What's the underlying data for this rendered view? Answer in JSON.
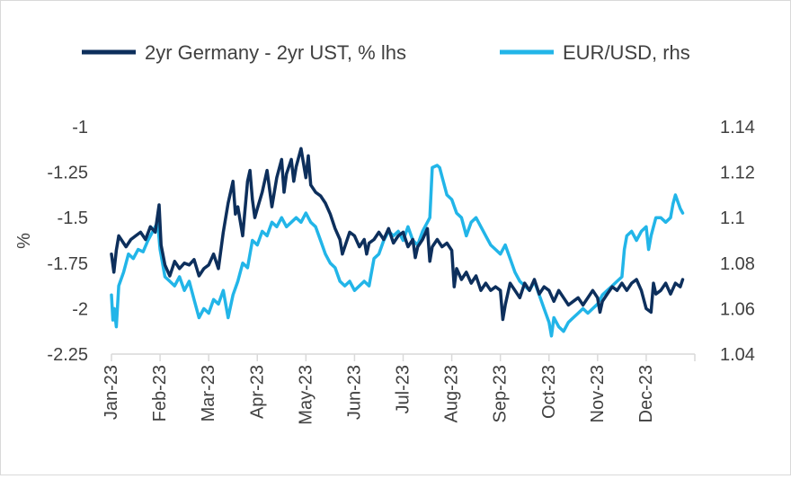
{
  "chart_data": {
    "type": "line",
    "title": "",
    "xlabel": "",
    "ylabel_left": "%",
    "ylabel_right": "",
    "x_categories": [
      "Jan-23",
      "Feb-23",
      "Mar-23",
      "Apr-23",
      "May-23",
      "Jun-23",
      "Jul-23",
      "Aug-23",
      "Sep-23",
      "Oct-23",
      "Nov-23",
      "Dec-23"
    ],
    "ylim_left": [
      -2.25,
      -1
    ],
    "yticks_left": [
      -1,
      -1.25,
      -1.5,
      -1.75,
      -2,
      -2.25
    ],
    "ytick_labels_left": [
      "-1",
      "-1.25",
      "-1.5",
      "-1.75",
      "-2",
      "-2.25"
    ],
    "ylim_right": [
      1.04,
      1.14
    ],
    "yticks_right": [
      1.14,
      1.12,
      1.1,
      1.08,
      1.06,
      1.04
    ],
    "ytick_labels_right": [
      "1.14",
      "1.12",
      "1.1",
      "1.08",
      "1.06",
      "1.04"
    ],
    "grid": false,
    "legend_position": "top",
    "colors": {
      "germany_ust": "#0d2f5c",
      "eurusd": "#22b5e8",
      "axis": "#d9d9d9",
      "text": "#404040"
    },
    "series": [
      {
        "name": "2yr Germany - 2yr UST, % lhs",
        "axis": "left",
        "points": [
          [
            0.0,
            -1.7
          ],
          [
            0.05,
            -1.8
          ],
          [
            0.1,
            -1.68
          ],
          [
            0.15,
            -1.6
          ],
          [
            0.2,
            -1.62
          ],
          [
            0.3,
            -1.66
          ],
          [
            0.4,
            -1.62
          ],
          [
            0.5,
            -1.6
          ],
          [
            0.6,
            -1.58
          ],
          [
            0.7,
            -1.62
          ],
          [
            0.8,
            -1.55
          ],
          [
            0.9,
            -1.58
          ],
          [
            0.98,
            -1.43
          ],
          [
            1.02,
            -1.65
          ],
          [
            1.1,
            -1.76
          ],
          [
            1.2,
            -1.82
          ],
          [
            1.3,
            -1.74
          ],
          [
            1.4,
            -1.78
          ],
          [
            1.5,
            -1.75
          ],
          [
            1.6,
            -1.76
          ],
          [
            1.7,
            -1.73
          ],
          [
            1.8,
            -1.82
          ],
          [
            1.9,
            -1.78
          ],
          [
            2.0,
            -1.76
          ],
          [
            2.1,
            -1.7
          ],
          [
            2.2,
            -1.78
          ],
          [
            2.3,
            -1.58
          ],
          [
            2.35,
            -1.5
          ],
          [
            2.4,
            -1.42
          ],
          [
            2.5,
            -1.3
          ],
          [
            2.55,
            -1.48
          ],
          [
            2.6,
            -1.44
          ],
          [
            2.7,
            -1.6
          ],
          [
            2.8,
            -1.3
          ],
          [
            2.85,
            -1.24
          ],
          [
            2.9,
            -1.4
          ],
          [
            2.95,
            -1.5
          ],
          [
            3.0,
            -1.45
          ],
          [
            3.1,
            -1.36
          ],
          [
            3.2,
            -1.24
          ],
          [
            3.3,
            -1.44
          ],
          [
            3.4,
            -1.28
          ],
          [
            3.5,
            -1.18
          ],
          [
            3.55,
            -1.36
          ],
          [
            3.6,
            -1.26
          ],
          [
            3.7,
            -1.18
          ],
          [
            3.75,
            -1.3
          ],
          [
            3.8,
            -1.22
          ],
          [
            3.9,
            -1.12
          ],
          [
            4.0,
            -1.28
          ],
          [
            4.05,
            -1.16
          ],
          [
            4.1,
            -1.32
          ],
          [
            4.2,
            -1.36
          ],
          [
            4.3,
            -1.38
          ],
          [
            4.4,
            -1.42
          ],
          [
            4.5,
            -1.48
          ],
          [
            4.6,
            -1.56
          ],
          [
            4.7,
            -1.62
          ],
          [
            4.75,
            -1.7
          ],
          [
            4.8,
            -1.66
          ],
          [
            4.9,
            -1.58
          ],
          [
            5.0,
            -1.6
          ],
          [
            5.1,
            -1.66
          ],
          [
            5.2,
            -1.62
          ],
          [
            5.25,
            -1.7
          ],
          [
            5.3,
            -1.64
          ],
          [
            5.4,
            -1.62
          ],
          [
            5.5,
            -1.58
          ],
          [
            5.6,
            -1.62
          ],
          [
            5.7,
            -1.56
          ],
          [
            5.8,
            -1.64
          ],
          [
            5.9,
            -1.6
          ],
          [
            6.0,
            -1.58
          ],
          [
            6.1,
            -1.66
          ],
          [
            6.2,
            -1.62
          ],
          [
            6.25,
            -1.72
          ],
          [
            6.3,
            -1.66
          ],
          [
            6.4,
            -1.62
          ],
          [
            6.5,
            -1.56
          ],
          [
            6.55,
            -1.74
          ],
          [
            6.6,
            -1.66
          ],
          [
            6.7,
            -1.62
          ],
          [
            6.8,
            -1.66
          ],
          [
            6.9,
            -1.64
          ],
          [
            7.0,
            -1.68
          ],
          [
            7.05,
            -1.88
          ],
          [
            7.1,
            -1.78
          ],
          [
            7.2,
            -1.84
          ],
          [
            7.3,
            -1.8
          ],
          [
            7.4,
            -1.86
          ],
          [
            7.5,
            -1.82
          ],
          [
            7.6,
            -1.9
          ],
          [
            7.7,
            -1.86
          ],
          [
            7.8,
            -1.9
          ],
          [
            7.9,
            -1.88
          ],
          [
            8.0,
            -1.9
          ],
          [
            8.05,
            -2.06
          ],
          [
            8.1,
            -1.98
          ],
          [
            8.2,
            -1.86
          ],
          [
            8.3,
            -1.9
          ],
          [
            8.4,
            -1.94
          ],
          [
            8.5,
            -1.86
          ],
          [
            8.6,
            -1.9
          ],
          [
            8.7,
            -1.84
          ],
          [
            8.8,
            -1.92
          ],
          [
            8.9,
            -1.88
          ],
          [
            9.0,
            -1.9
          ],
          [
            9.1,
            -1.96
          ],
          [
            9.2,
            -1.9
          ],
          [
            9.3,
            -1.94
          ],
          [
            9.4,
            -1.98
          ],
          [
            9.5,
            -1.96
          ],
          [
            9.6,
            -1.94
          ],
          [
            9.7,
            -1.98
          ],
          [
            9.8,
            -1.94
          ],
          [
            9.9,
            -1.9
          ],
          [
            10.0,
            -1.94
          ],
          [
            10.05,
            -2.02
          ],
          [
            10.1,
            -1.96
          ],
          [
            10.2,
            -1.92
          ],
          [
            10.3,
            -1.88
          ],
          [
            10.4,
            -1.9
          ],
          [
            10.5,
            -1.86
          ],
          [
            10.6,
            -1.9
          ],
          [
            10.7,
            -1.86
          ],
          [
            10.8,
            -1.84
          ],
          [
            10.9,
            -1.9
          ],
          [
            11.0,
            -2.0
          ],
          [
            11.1,
            -2.02
          ],
          [
            11.15,
            -1.86
          ],
          [
            11.2,
            -1.92
          ],
          [
            11.3,
            -1.9
          ],
          [
            11.4,
            -1.86
          ],
          [
            11.5,
            -1.92
          ],
          [
            11.6,
            -1.86
          ],
          [
            11.7,
            -1.88
          ],
          [
            11.75,
            -1.84
          ]
        ]
      },
      {
        "name": "EUR/USD, rhs",
        "axis": "right",
        "points": [
          [
            0.0,
            1.066
          ],
          [
            0.03,
            1.055
          ],
          [
            0.06,
            1.06
          ],
          [
            0.1,
            1.052
          ],
          [
            0.15,
            1.07
          ],
          [
            0.25,
            1.076
          ],
          [
            0.35,
            1.084
          ],
          [
            0.45,
            1.082
          ],
          [
            0.55,
            1.086
          ],
          [
            0.65,
            1.085
          ],
          [
            0.75,
            1.09
          ],
          [
            0.85,
            1.094
          ],
          [
            0.95,
            1.098
          ],
          [
            1.0,
            1.086
          ],
          [
            1.1,
            1.074
          ],
          [
            1.2,
            1.072
          ],
          [
            1.3,
            1.07
          ],
          [
            1.4,
            1.074
          ],
          [
            1.5,
            1.068
          ],
          [
            1.6,
            1.072
          ],
          [
            1.7,
            1.064
          ],
          [
            1.8,
            1.056
          ],
          [
            1.9,
            1.06
          ],
          [
            2.0,
            1.058
          ],
          [
            2.1,
            1.064
          ],
          [
            2.2,
            1.062
          ],
          [
            2.3,
            1.068
          ],
          [
            2.4,
            1.056
          ],
          [
            2.5,
            1.066
          ],
          [
            2.6,
            1.072
          ],
          [
            2.7,
            1.08
          ],
          [
            2.8,
            1.078
          ],
          [
            2.9,
            1.09
          ],
          [
            3.0,
            1.088
          ],
          [
            3.1,
            1.094
          ],
          [
            3.2,
            1.092
          ],
          [
            3.3,
            1.098
          ],
          [
            3.4,
            1.096
          ],
          [
            3.5,
            1.1
          ],
          [
            3.6,
            1.096
          ],
          [
            3.7,
            1.098
          ],
          [
            3.8,
            1.1
          ],
          [
            3.9,
            1.098
          ],
          [
            4.0,
            1.102
          ],
          [
            4.1,
            1.098
          ],
          [
            4.2,
            1.096
          ],
          [
            4.3,
            1.09
          ],
          [
            4.4,
            1.084
          ],
          [
            4.5,
            1.08
          ],
          [
            4.6,
            1.078
          ],
          [
            4.7,
            1.072
          ],
          [
            4.8,
            1.07
          ],
          [
            4.9,
            1.072
          ],
          [
            5.0,
            1.068
          ],
          [
            5.1,
            1.07
          ],
          [
            5.2,
            1.072
          ],
          [
            5.3,
            1.07
          ],
          [
            5.4,
            1.082
          ],
          [
            5.5,
            1.084
          ],
          [
            5.6,
            1.09
          ],
          [
            5.7,
            1.094
          ],
          [
            5.8,
            1.092
          ],
          [
            5.9,
            1.094
          ],
          [
            6.0,
            1.09
          ],
          [
            6.1,
            1.096
          ],
          [
            6.2,
            1.09
          ],
          [
            6.3,
            1.088
          ],
          [
            6.4,
            1.094
          ],
          [
            6.5,
            1.098
          ],
          [
            6.55,
            1.1
          ],
          [
            6.6,
            1.122
          ],
          [
            6.7,
            1.123
          ],
          [
            6.75,
            1.122
          ],
          [
            6.8,
            1.118
          ],
          [
            6.9,
            1.11
          ],
          [
            7.0,
            1.108
          ],
          [
            7.1,
            1.102
          ],
          [
            7.2,
            1.1
          ],
          [
            7.3,
            1.092
          ],
          [
            7.4,
            1.098
          ],
          [
            7.5,
            1.1
          ],
          [
            7.6,
            1.096
          ],
          [
            7.7,
            1.092
          ],
          [
            7.8,
            1.088
          ],
          [
            7.9,
            1.086
          ],
          [
            8.0,
            1.084
          ],
          [
            8.1,
            1.088
          ],
          [
            8.2,
            1.082
          ],
          [
            8.3,
            1.076
          ],
          [
            8.4,
            1.072
          ],
          [
            8.5,
            1.07
          ],
          [
            8.6,
            1.068
          ],
          [
            8.7,
            1.072
          ],
          [
            8.8,
            1.066
          ],
          [
            8.9,
            1.06
          ],
          [
            9.0,
            1.054
          ],
          [
            9.05,
            1.048
          ],
          [
            9.1,
            1.056
          ],
          [
            9.2,
            1.052
          ],
          [
            9.3,
            1.05
          ],
          [
            9.4,
            1.054
          ],
          [
            9.5,
            1.056
          ],
          [
            9.6,
            1.058
          ],
          [
            9.7,
            1.06
          ],
          [
            9.8,
            1.058
          ],
          [
            9.9,
            1.06
          ],
          [
            10.0,
            1.062
          ],
          [
            10.1,
            1.066
          ],
          [
            10.2,
            1.068
          ],
          [
            10.3,
            1.07
          ],
          [
            10.4,
            1.072
          ],
          [
            10.5,
            1.074
          ],
          [
            10.55,
            1.086
          ],
          [
            10.6,
            1.092
          ],
          [
            10.7,
            1.094
          ],
          [
            10.8,
            1.09
          ],
          [
            10.9,
            1.094
          ],
          [
            11.0,
            1.096
          ],
          [
            11.05,
            1.086
          ],
          [
            11.1,
            1.092
          ],
          [
            11.2,
            1.1
          ],
          [
            11.3,
            1.1
          ],
          [
            11.4,
            1.098
          ],
          [
            11.5,
            1.1
          ],
          [
            11.55,
            1.106
          ],
          [
            11.6,
            1.11
          ],
          [
            11.7,
            1.104
          ],
          [
            11.75,
            1.102
          ]
        ]
      }
    ]
  }
}
